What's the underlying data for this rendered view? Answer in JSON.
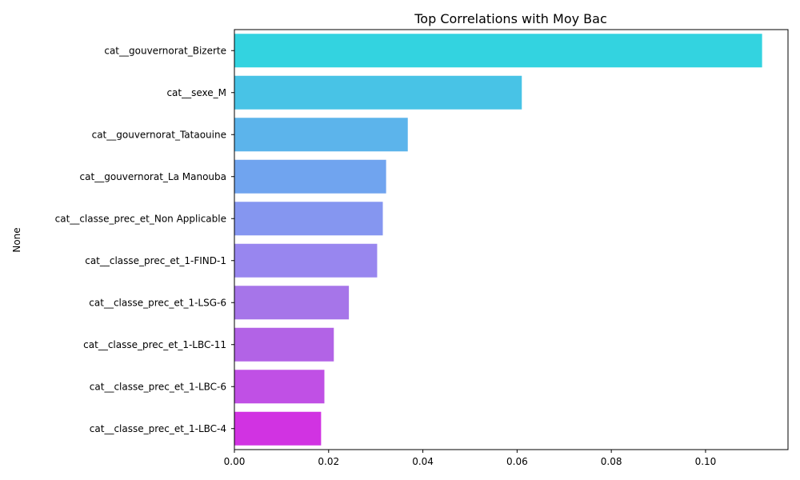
{
  "chart_data": {
    "type": "bar",
    "orientation": "horizontal",
    "title": "Top Correlations with Moy Bac",
    "xlabel": "",
    "ylabel": "None",
    "xlim": [
      0,
      0.1175
    ],
    "xticks": [
      0.0,
      0.02,
      0.04,
      0.06,
      0.08,
      0.1
    ],
    "xtick_labels": [
      "0.00",
      "0.02",
      "0.04",
      "0.06",
      "0.08",
      "0.10"
    ],
    "grid": false,
    "categories": [
      "cat__gouvernorat_Bizerte",
      "cat__sexe_M",
      "cat__gouvernorat_Tataouine",
      "cat__gouvernorat_La Manouba",
      "cat__classe_prec_et_Non Applicable",
      "cat__classe_prec_et_1-FIND-1",
      "cat__classe_prec_et_1-LSG-6",
      "cat__classe_prec_et_1-LBC-11",
      "cat__classe_prec_et_1-LBC-6",
      "cat__classe_prec_et_1-LBC-4"
    ],
    "values": [
      0.112,
      0.061,
      0.0368,
      0.0322,
      0.0315,
      0.0303,
      0.0243,
      0.0211,
      0.0191,
      0.0184
    ],
    "colors": [
      "#33d3e0",
      "#48c3e6",
      "#5cb4eb",
      "#70a4ef",
      "#8596f0",
      "#9886ef",
      "#a675e9",
      "#b263e6",
      "#c050e5",
      "#d133e2"
    ]
  }
}
